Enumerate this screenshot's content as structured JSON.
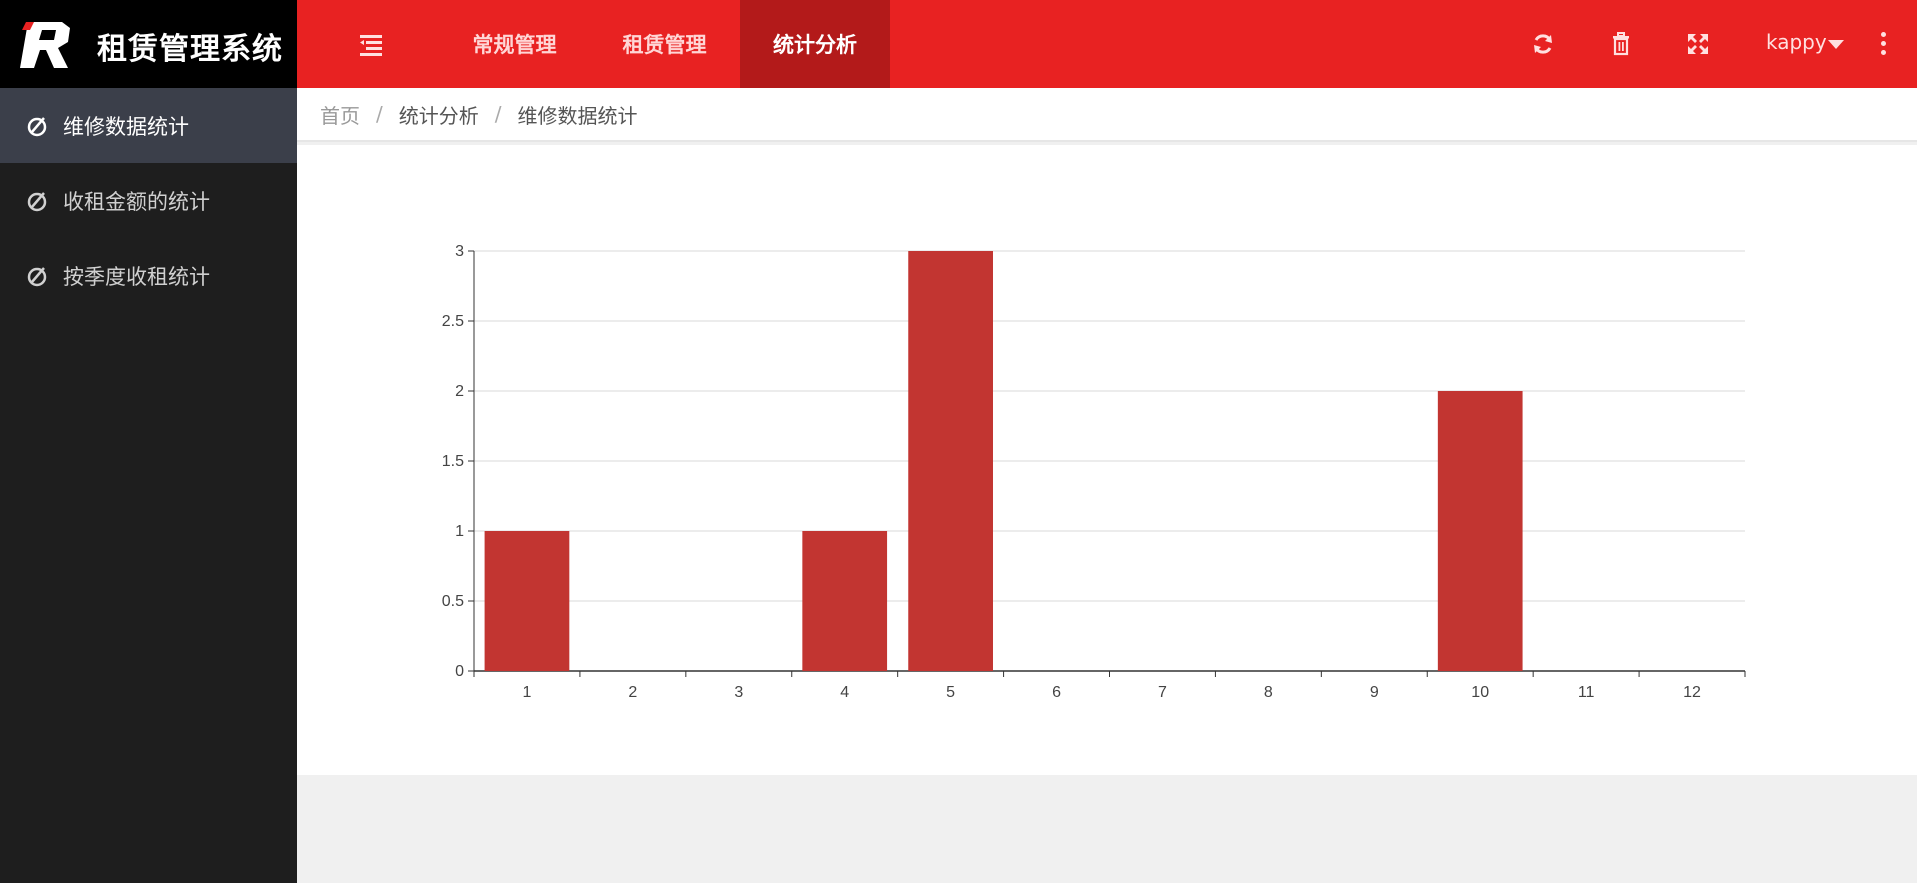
{
  "app": {
    "title": "租赁管理系统",
    "logo_letter": "R"
  },
  "top_nav": {
    "items": [
      {
        "label": "常规管理",
        "active": false
      },
      {
        "label": "租赁管理",
        "active": false
      },
      {
        "label": "统计分析",
        "active": true
      }
    ]
  },
  "toolbar": {
    "icons": [
      "refresh-icon",
      "trash-icon",
      "fullscreen-icon"
    ],
    "user": "kappy"
  },
  "sidebar": {
    "items": [
      {
        "label": "维修数据统计",
        "active": true
      },
      {
        "label": "收租金额的统计",
        "active": false
      },
      {
        "label": "按季度收租统计",
        "active": false
      }
    ]
  },
  "breadcrumb": {
    "home": "首页",
    "sep": "/",
    "level1": "统计分析",
    "level2": "维修数据统计"
  },
  "colors": {
    "topbar": "#e82222",
    "active_nav": "#b31a1a",
    "sidebar": "#1e1e1e",
    "sidebar_active": "#3b3f4a",
    "bar": "#c23531"
  },
  "chart_data": {
    "type": "bar",
    "categories": [
      "1",
      "2",
      "3",
      "4",
      "5",
      "6",
      "7",
      "8",
      "9",
      "10",
      "11",
      "12"
    ],
    "values": [
      1,
      0,
      0,
      1,
      3,
      0,
      0,
      0,
      0,
      2,
      0,
      0
    ],
    "yticks": [
      "0",
      "0.5",
      "1",
      "1.5",
      "2",
      "2.5",
      "3"
    ],
    "ylim": [
      0,
      3
    ],
    "grid": true
  }
}
